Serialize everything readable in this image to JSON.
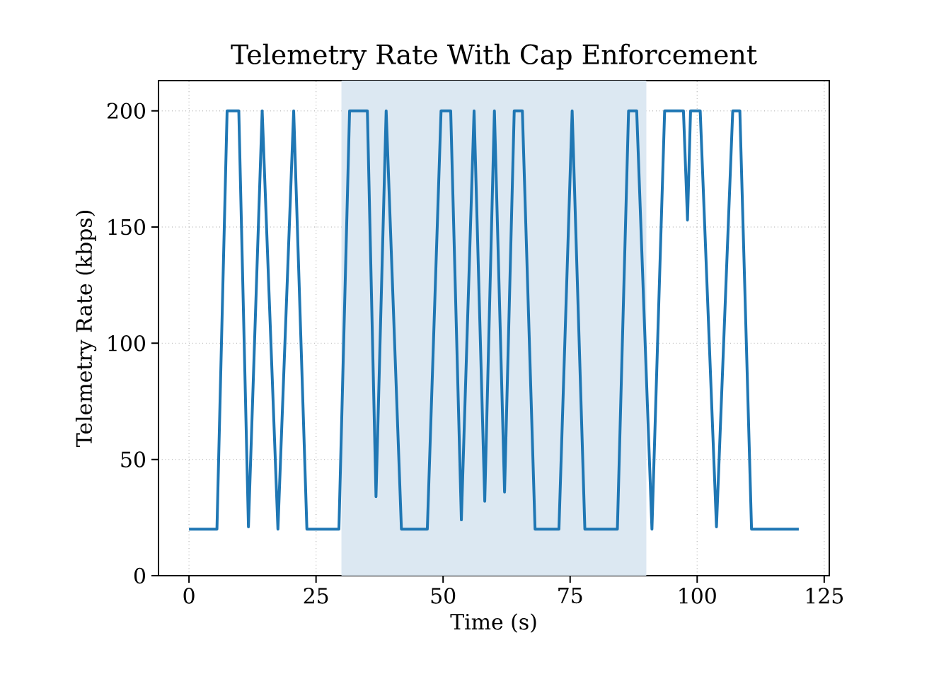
{
  "chart_data": {
    "type": "line",
    "title": "Telemetry Rate With Cap Enforcement",
    "xlabel": "Time (s)",
    "ylabel": "Telemetry Rate (kbps)",
    "xlim": [
      -6,
      126
    ],
    "ylim": [
      0,
      213
    ],
    "xticks": [
      0,
      25,
      50,
      75,
      100,
      125
    ],
    "yticks": [
      0,
      50,
      100,
      150,
      200
    ],
    "grid": true,
    "bands": [
      {
        "axis": "x",
        "from": 30,
        "to": 90,
        "color": "#dce8f2"
      }
    ],
    "series": [
      {
        "color": "#1f77b4",
        "x": [
          0,
          5.5,
          7.5,
          9.8,
          11.7,
          14.4,
          17.5,
          20.6,
          23.2,
          29.5,
          31.6,
          35.1,
          36.8,
          38.8,
          41.8,
          46.9,
          49.6,
          51.5,
          53.6,
          56.1,
          58.2,
          60.1,
          62.1,
          64,
          65.6,
          68.1,
          72.8,
          75.4,
          77.9,
          84.3,
          86.5,
          88.1,
          91.1,
          93.6,
          97.3,
          98.1,
          98.7,
          100.6,
          103.8,
          107,
          108.4,
          110.7,
          120
        ],
        "values": [
          20,
          20,
          200,
          200,
          21,
          200,
          20,
          200,
          20,
          20,
          200,
          200,
          34,
          200,
          20,
          20,
          200,
          200,
          24,
          200,
          32,
          200,
          36,
          200,
          200,
          20,
          20,
          200,
          20,
          20,
          200,
          200,
          20,
          200,
          200,
          153,
          200,
          200,
          21,
          200,
          200,
          20,
          20
        ]
      }
    ]
  }
}
